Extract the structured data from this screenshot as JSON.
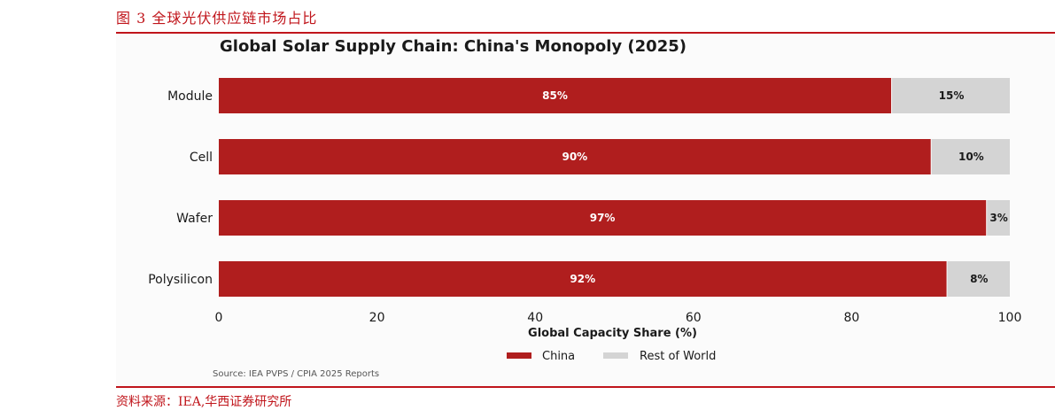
{
  "figure_caption": "图 3 全球光伏供应链市场占比",
  "source_caption": "资料来源：IEA,华西证券研究所",
  "chart_data": {
    "type": "bar",
    "orientation": "horizontal",
    "stacked": true,
    "title": "Global Solar Supply Chain: China's Monopoly (2025)",
    "xlabel": "Global Capacity Share (%)",
    "ylabel": "",
    "xlim": [
      0,
      100
    ],
    "xticks": [
      "0",
      "20",
      "40",
      "60",
      "80",
      "100"
    ],
    "categories": [
      "Module",
      "Cell",
      "Wafer",
      "Polysilicon"
    ],
    "series": [
      {
        "name": "China",
        "values": [
          85,
          90,
          97,
          92
        ],
        "labels": [
          "85%",
          "90%",
          "97%",
          "92%"
        ],
        "color": "#b01e1e"
      },
      {
        "name": "Rest of World",
        "values": [
          15,
          10,
          3,
          8
        ],
        "labels": [
          "15%",
          "10%",
          "3%",
          "8%"
        ],
        "color": "#d4d4d4"
      }
    ],
    "legend_position": "bottom-center",
    "grid": false,
    "source_note": "Source: IEA PVPS / CPIA 2025 Reports"
  }
}
